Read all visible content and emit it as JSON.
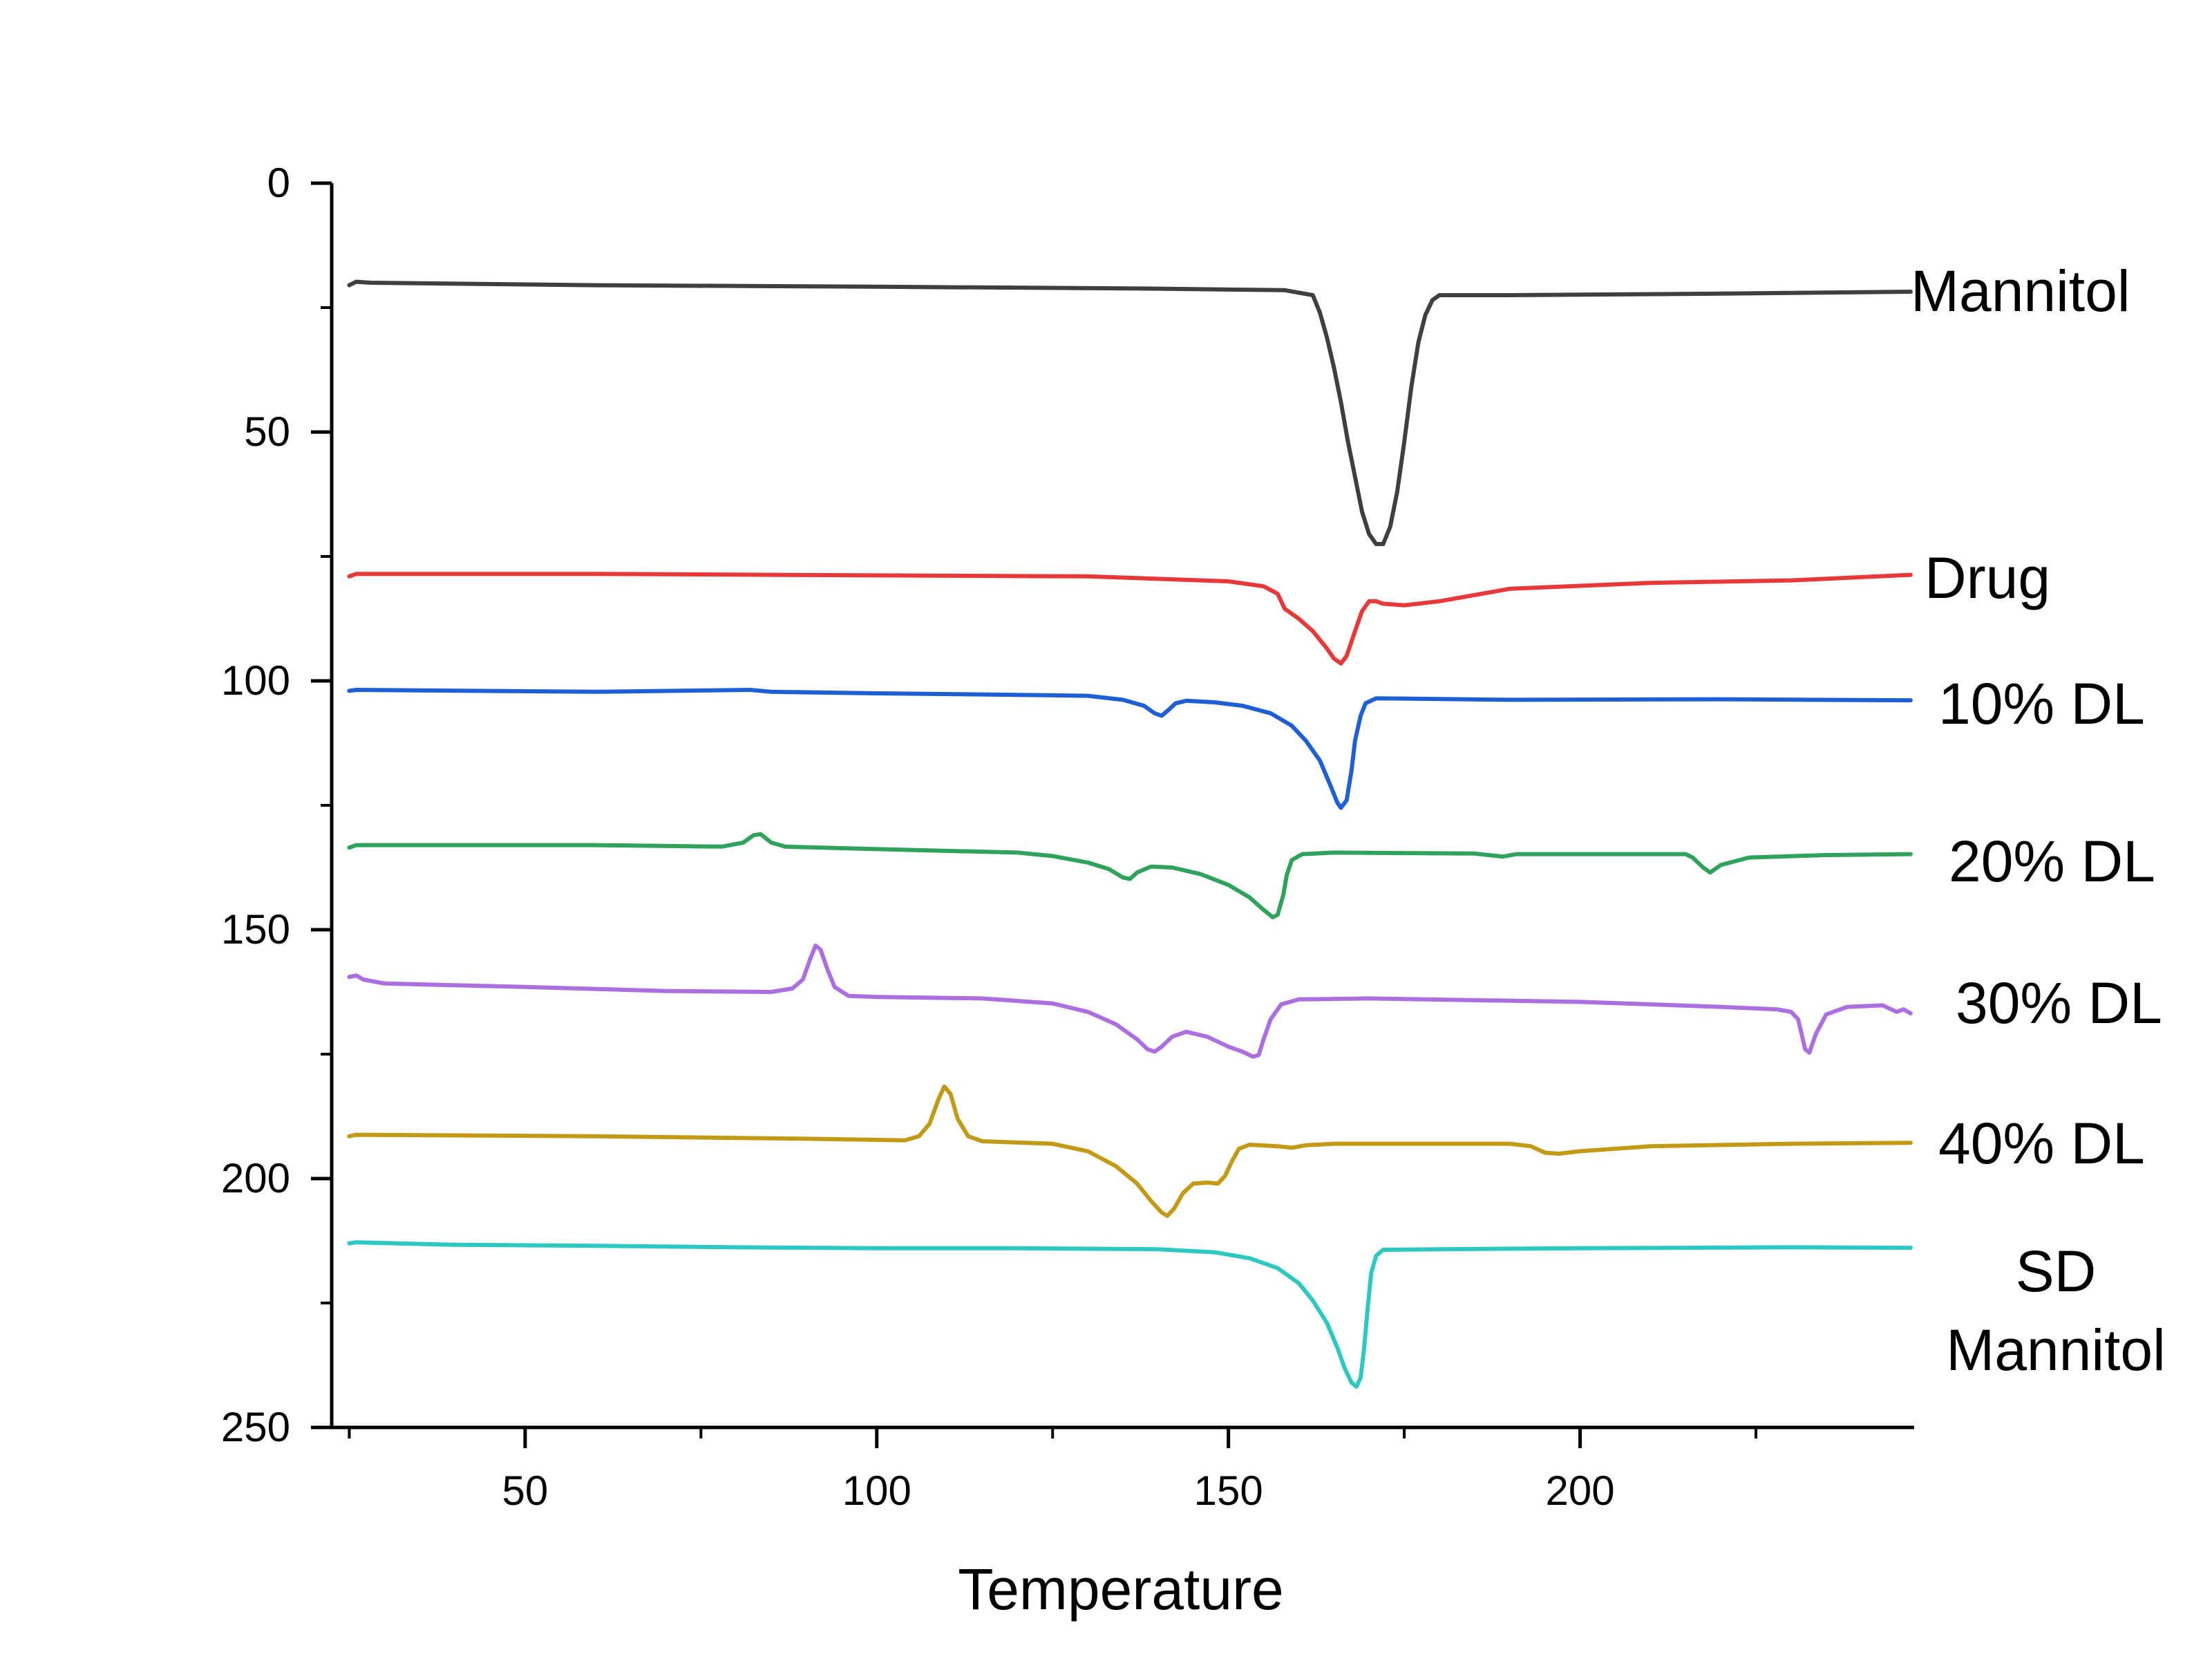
{
  "chart_data": {
    "type": "line",
    "xlabel": "Temperature",
    "ylabel": "",
    "xlim": [
      22.5,
      247.5
    ],
    "ylim": [
      0,
      250
    ],
    "y_inverted": true,
    "grid": false,
    "legend": "none",
    "x_ticks": [
      50,
      100,
      150,
      200
    ],
    "x_tick_labels": [
      "50",
      "100",
      "150",
      "200"
    ],
    "y_ticks": [
      0,
      50,
      100,
      150,
      200,
      250
    ],
    "y_tick_labels": [
      "0",
      "50",
      "100",
      "150",
      "200",
      "250"
    ],
    "series": [
      {
        "label_lines": [
          "Mannitol"
        ],
        "color": "#3f3f3f",
        "points": [
          [
            25,
            20.5
          ],
          [
            26,
            19.8
          ],
          [
            28,
            20
          ],
          [
            60,
            20.5
          ],
          [
            100,
            20.8
          ],
          [
            140,
            21.2
          ],
          [
            158,
            21.5
          ],
          [
            162,
            22.5
          ],
          [
            163,
            26
          ],
          [
            164,
            31
          ],
          [
            165,
            37
          ],
          [
            166,
            44
          ],
          [
            167,
            52
          ],
          [
            168,
            59
          ],
          [
            169,
            66
          ],
          [
            170,
            70.5
          ],
          [
            171,
            72.5
          ],
          [
            172,
            72.5
          ],
          [
            173,
            69
          ],
          [
            174,
            62
          ],
          [
            175,
            52
          ],
          [
            176,
            41
          ],
          [
            177,
            32
          ],
          [
            178,
            26.5
          ],
          [
            179,
            23.5
          ],
          [
            180,
            22.5
          ],
          [
            190,
            22.5
          ],
          [
            220,
            22.2
          ],
          [
            247,
            21.8
          ]
        ]
      },
      {
        "label_lines": [
          "Drug"
        ],
        "color": "#e8393a",
        "points": [
          [
            25,
            79
          ],
          [
            26,
            78.5
          ],
          [
            60,
            78.5
          ],
          [
            100,
            78.8
          ],
          [
            130,
            79
          ],
          [
            150,
            80
          ],
          [
            155,
            81
          ],
          [
            157,
            82.5
          ],
          [
            158,
            85.5
          ],
          [
            160,
            87.5
          ],
          [
            162,
            90
          ],
          [
            164,
            93.5
          ],
          [
            165,
            95.5
          ],
          [
            166,
            96.5
          ],
          [
            166.8,
            95
          ],
          [
            168,
            90
          ],
          [
            169,
            86
          ],
          [
            170,
            84
          ],
          [
            171,
            84
          ],
          [
            172,
            84.5
          ],
          [
            175,
            84.8
          ],
          [
            180,
            84
          ],
          [
            190,
            81.5
          ],
          [
            210,
            80.3
          ],
          [
            230,
            79.8
          ],
          [
            247,
            78.7
          ]
        ]
      },
      {
        "label_lines": [
          "10% DL"
        ],
        "color": "#1f5fd6",
        "points": [
          [
            25,
            102
          ],
          [
            26,
            101.8
          ],
          [
            60,
            102.2
          ],
          [
            82,
            101.8
          ],
          [
            85,
            102.2
          ],
          [
            100,
            102.5
          ],
          [
            120,
            102.8
          ],
          [
            130,
            103
          ],
          [
            135,
            103.8
          ],
          [
            138,
            105
          ],
          [
            139.5,
            106.5
          ],
          [
            140.5,
            107
          ],
          [
            141.5,
            105.8
          ],
          [
            142.5,
            104.5
          ],
          [
            144,
            104
          ],
          [
            148,
            104.3
          ],
          [
            152,
            105
          ],
          [
            156,
            106.5
          ],
          [
            159,
            109
          ],
          [
            161,
            112
          ],
          [
            163,
            116
          ],
          [
            164.5,
            121
          ],
          [
            165.5,
            124.5
          ],
          [
            166,
            125.5
          ],
          [
            166.8,
            124
          ],
          [
            167.5,
            118
          ],
          [
            168,
            112
          ],
          [
            168.8,
            107
          ],
          [
            169.5,
            104.5
          ],
          [
            171,
            103.5
          ],
          [
            190,
            103.8
          ],
          [
            220,
            103.7
          ],
          [
            247,
            103.9
          ]
        ]
      },
      {
        "label_lines": [
          "20% DL"
        ],
        "color": "#2fa35c",
        "points": [
          [
            25,
            133.5
          ],
          [
            26,
            133
          ],
          [
            60,
            133
          ],
          [
            78,
            133.3
          ],
          [
            81,
            132.5
          ],
          [
            82.5,
            131
          ],
          [
            83.5,
            130.8
          ],
          [
            85,
            132.5
          ],
          [
            87,
            133.3
          ],
          [
            100,
            133.8
          ],
          [
            120,
            134.5
          ],
          [
            125,
            135.2
          ],
          [
            130,
            136.5
          ],
          [
            133,
            137.8
          ],
          [
            135,
            139.5
          ],
          [
            136,
            139.8
          ],
          [
            137,
            138.5
          ],
          [
            139,
            137.3
          ],
          [
            142,
            137.5
          ],
          [
            146,
            138.8
          ],
          [
            150,
            141
          ],
          [
            153,
            143.5
          ],
          [
            155,
            146
          ],
          [
            156.3,
            147.5
          ],
          [
            157,
            147
          ],
          [
            157.8,
            143
          ],
          [
            158.3,
            139
          ],
          [
            159,
            136
          ],
          [
            160.5,
            134.8
          ],
          [
            165,
            134.5
          ],
          [
            185,
            134.7
          ],
          [
            189,
            135.3
          ],
          [
            191,
            134.8
          ],
          [
            205,
            134.8
          ],
          [
            215,
            134.8
          ],
          [
            216,
            135.5
          ],
          [
            217.5,
            137.5
          ],
          [
            218.5,
            138.5
          ],
          [
            220,
            137
          ],
          [
            224,
            135.5
          ],
          [
            235,
            135
          ],
          [
            247,
            134.8
          ]
        ]
      },
      {
        "label_lines": [
          "30% DL"
        ],
        "color": "#ac6fe0",
        "points": [
          [
            25,
            159.5
          ],
          [
            26,
            159.2
          ],
          [
            27,
            160
          ],
          [
            30,
            160.8
          ],
          [
            50,
            161.5
          ],
          [
            70,
            162.3
          ],
          [
            85,
            162.5
          ],
          [
            88,
            161.8
          ],
          [
            89.5,
            160
          ],
          [
            90.5,
            156
          ],
          [
            91.3,
            153.2
          ],
          [
            92,
            154
          ],
          [
            93,
            158
          ],
          [
            94,
            161.5
          ],
          [
            96,
            163.3
          ],
          [
            100,
            163.5
          ],
          [
            115,
            163.8
          ],
          [
            125,
            164.8
          ],
          [
            130,
            166.5
          ],
          [
            134,
            169
          ],
          [
            137,
            172
          ],
          [
            138.5,
            174
          ],
          [
            139.5,
            174.5
          ],
          [
            140.5,
            173.5
          ],
          [
            142,
            171.5
          ],
          [
            144,
            170.5
          ],
          [
            147,
            171.5
          ],
          [
            150,
            173.5
          ],
          [
            152,
            174.5
          ],
          [
            153.5,
            175.5
          ],
          [
            154.3,
            175.2
          ],
          [
            155,
            172
          ],
          [
            156,
            168
          ],
          [
            157.5,
            165
          ],
          [
            160,
            164
          ],
          [
            170,
            163.8
          ],
          [
            200,
            164.5
          ],
          [
            220,
            165.5
          ],
          [
            228,
            166
          ],
          [
            230,
            166.5
          ],
          [
            231,
            168
          ],
          [
            231.5,
            171
          ],
          [
            232,
            174
          ],
          [
            232.6,
            174.7
          ],
          [
            233.5,
            171
          ],
          [
            235,
            167
          ],
          [
            238,
            165.5
          ],
          [
            243,
            165.2
          ],
          [
            245,
            166.5
          ],
          [
            246,
            166
          ],
          [
            247,
            166.8
          ]
        ]
      },
      {
        "label_lines": [
          "40% DL"
        ],
        "color": "#c39a16",
        "points": [
          [
            25,
            191.5
          ],
          [
            26,
            191.2
          ],
          [
            60,
            191.5
          ],
          [
            90,
            192
          ],
          [
            104,
            192.3
          ],
          [
            106,
            191.5
          ],
          [
            107.5,
            189
          ],
          [
            108.8,
            184
          ],
          [
            109.6,
            181.5
          ],
          [
            110.5,
            183
          ],
          [
            111.5,
            188
          ],
          [
            113,
            191.5
          ],
          [
            115,
            192.5
          ],
          [
            125,
            193
          ],
          [
            130,
            194.5
          ],
          [
            134,
            197.5
          ],
          [
            137,
            201
          ],
          [
            139,
            204.5
          ],
          [
            140.5,
            206.8
          ],
          [
            141.3,
            207.5
          ],
          [
            142.3,
            206
          ],
          [
            143.5,
            203
          ],
          [
            145,
            201
          ],
          [
            147,
            200.8
          ],
          [
            148.5,
            201
          ],
          [
            149.5,
            199.5
          ],
          [
            150.5,
            196.5
          ],
          [
            151.5,
            194
          ],
          [
            153,
            193.2
          ],
          [
            157,
            193.5
          ],
          [
            159,
            193.8
          ],
          [
            161,
            193.3
          ],
          [
            165,
            193
          ],
          [
            190,
            193
          ],
          [
            193,
            193.5
          ],
          [
            195,
            194.8
          ],
          [
            197,
            195
          ],
          [
            200,
            194.5
          ],
          [
            210,
            193.5
          ],
          [
            230,
            193
          ],
          [
            247,
            192.8
          ]
        ]
      },
      {
        "label_lines": [
          "SD",
          "Mannitol"
        ],
        "color": "#2ec8c2",
        "points": [
          [
            25,
            213
          ],
          [
            26,
            212.8
          ],
          [
            40,
            213.3
          ],
          [
            60,
            213.5
          ],
          [
            80,
            213.8
          ],
          [
            100,
            214
          ],
          [
            120,
            214
          ],
          [
            140,
            214.2
          ],
          [
            148,
            214.8
          ],
          [
            153,
            216
          ],
          [
            157,
            218
          ],
          [
            160,
            221
          ],
          [
            162,
            224.5
          ],
          [
            164,
            229
          ],
          [
            165.5,
            234
          ],
          [
            166.5,
            238
          ],
          [
            167.5,
            241
          ],
          [
            168.2,
            241.8
          ],
          [
            168.8,
            240
          ],
          [
            169.3,
            234
          ],
          [
            169.8,
            226
          ],
          [
            170.3,
            219
          ],
          [
            171,
            215.5
          ],
          [
            172,
            214.3
          ],
          [
            180,
            214.2
          ],
          [
            200,
            214
          ],
          [
            230,
            213.8
          ],
          [
            247,
            213.9
          ]
        ]
      }
    ]
  }
}
